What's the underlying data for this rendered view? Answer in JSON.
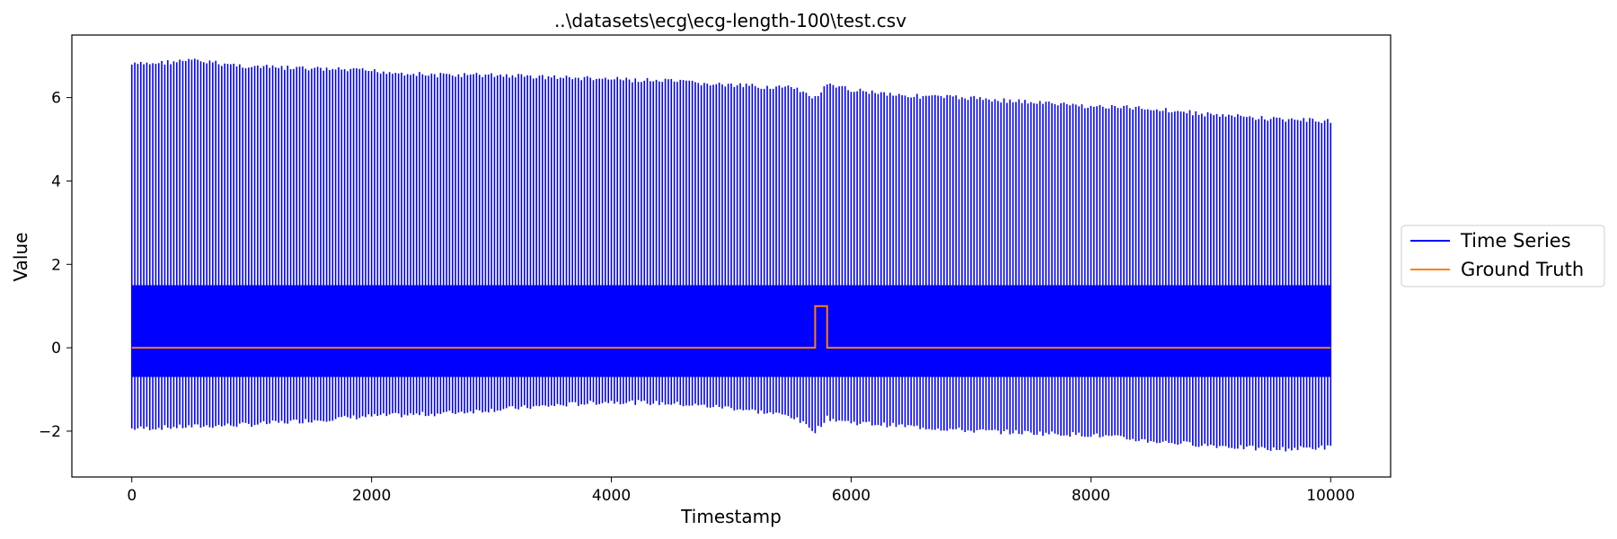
{
  "chart_data": {
    "type": "line",
    "title": "..\\datasets\\ecg\\ecg-length-100\\test.csv",
    "xlabel": "Timestamp",
    "ylabel": "Value",
    "xlim": [
      -500,
      10500
    ],
    "ylim": [
      -3.1,
      7.5
    ],
    "x_ticks": [
      0,
      2000,
      4000,
      6000,
      8000,
      10000
    ],
    "x_tick_labels": [
      "0",
      "2000",
      "4000",
      "6000",
      "8000",
      "10000"
    ],
    "y_ticks": [
      -2,
      0,
      2,
      4,
      6
    ],
    "y_tick_labels": [
      "−2",
      "0",
      "2",
      "4",
      "6"
    ],
    "grid": false,
    "legend_position": "center-right outside",
    "series": [
      {
        "name": "Time Series",
        "color": "#0000ff",
        "x_range": [
          0,
          10000
        ],
        "cycle_length": 100,
        "upper_envelope": {
          "x": [
            0,
            250,
            500,
            1000,
            1500,
            2000,
            2500,
            3000,
            3500,
            4000,
            4500,
            5000,
            5500,
            5700,
            5800,
            6000,
            6500,
            7000,
            7500,
            8000,
            8500,
            9000,
            9500,
            9950
          ],
          "y": [
            6.85,
            6.9,
            6.95,
            6.8,
            6.75,
            6.7,
            6.6,
            6.6,
            6.55,
            6.5,
            6.45,
            6.35,
            6.3,
            6.05,
            6.35,
            6.25,
            6.1,
            6.05,
            5.95,
            5.85,
            5.8,
            5.65,
            5.55,
            5.5
          ]
        },
        "lower_envelope": {
          "x": [
            0,
            500,
            1000,
            1500,
            2000,
            2500,
            3000,
            3500,
            4000,
            4500,
            5000,
            5500,
            5700,
            5800,
            6000,
            6500,
            7000,
            7500,
            8000,
            8500,
            9000,
            9500,
            9950
          ],
          "y": [
            -2.0,
            -1.95,
            -1.9,
            -1.8,
            -1.7,
            -1.65,
            -1.55,
            -1.45,
            -1.35,
            -1.4,
            -1.5,
            -1.7,
            -2.05,
            -1.75,
            -1.85,
            -1.95,
            -2.05,
            -2.1,
            -2.15,
            -2.3,
            -2.4,
            -2.5,
            -2.45
          ]
        },
        "baseline_band": [
          -0.7,
          1.5
        ]
      },
      {
        "name": "Ground Truth",
        "color": "#ff7f0e",
        "x": [
          0,
          5700,
          5700,
          5800,
          5800,
          10000
        ],
        "y": [
          0,
          0,
          1,
          1,
          0,
          0
        ]
      }
    ]
  }
}
